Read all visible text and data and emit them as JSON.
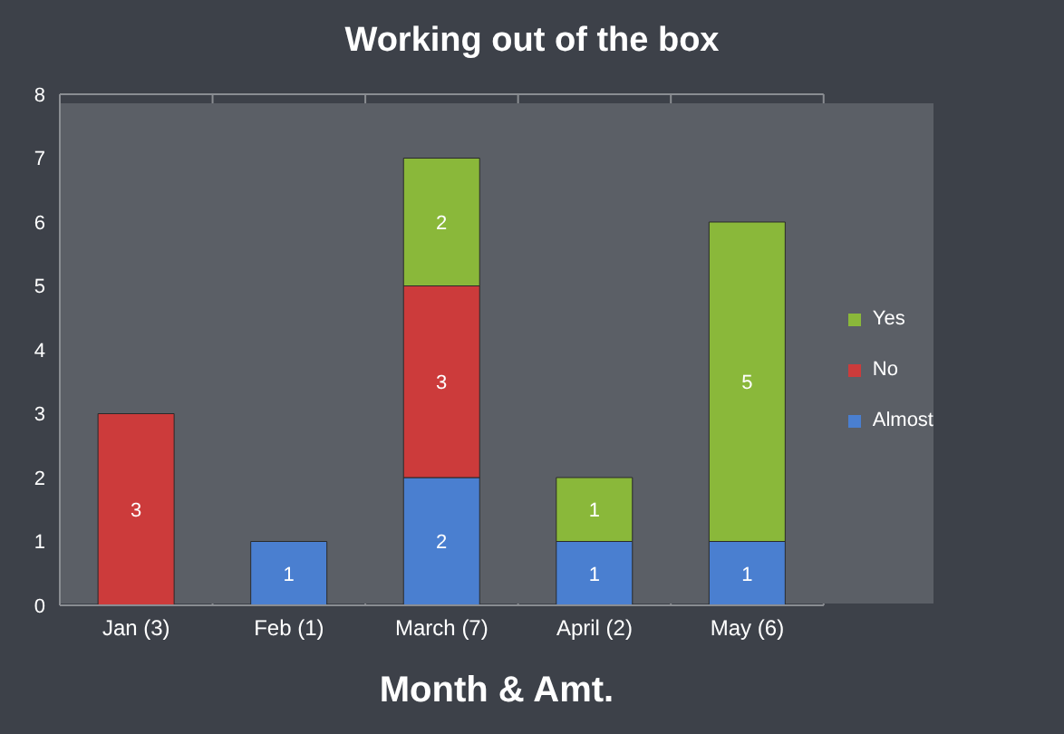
{
  "chart_data": {
    "type": "bar",
    "title": "Working out of the box",
    "xlabel": "Month & Amt.",
    "categories": [
      "Jan (3)",
      "Feb (1)",
      "March (7)",
      "April (2)",
      "May (6)"
    ],
    "series": [
      {
        "name": "Almost",
        "color": "#4a7fd0",
        "values": [
          null,
          1,
          2,
          1,
          1
        ]
      },
      {
        "name": "No",
        "color": "#cc3b3b",
        "values": [
          3,
          null,
          3,
          null,
          null
        ]
      },
      {
        "name": "Yes",
        "color": "#8ab83a",
        "values": [
          null,
          null,
          2,
          1,
          5
        ]
      }
    ],
    "stacked": true,
    "data_labels": true,
    "ylim": [
      0,
      8
    ],
    "yticks": [
      0,
      1,
      2,
      3,
      4,
      5,
      6,
      7,
      8
    ],
    "grid": true,
    "legend": "right"
  }
}
